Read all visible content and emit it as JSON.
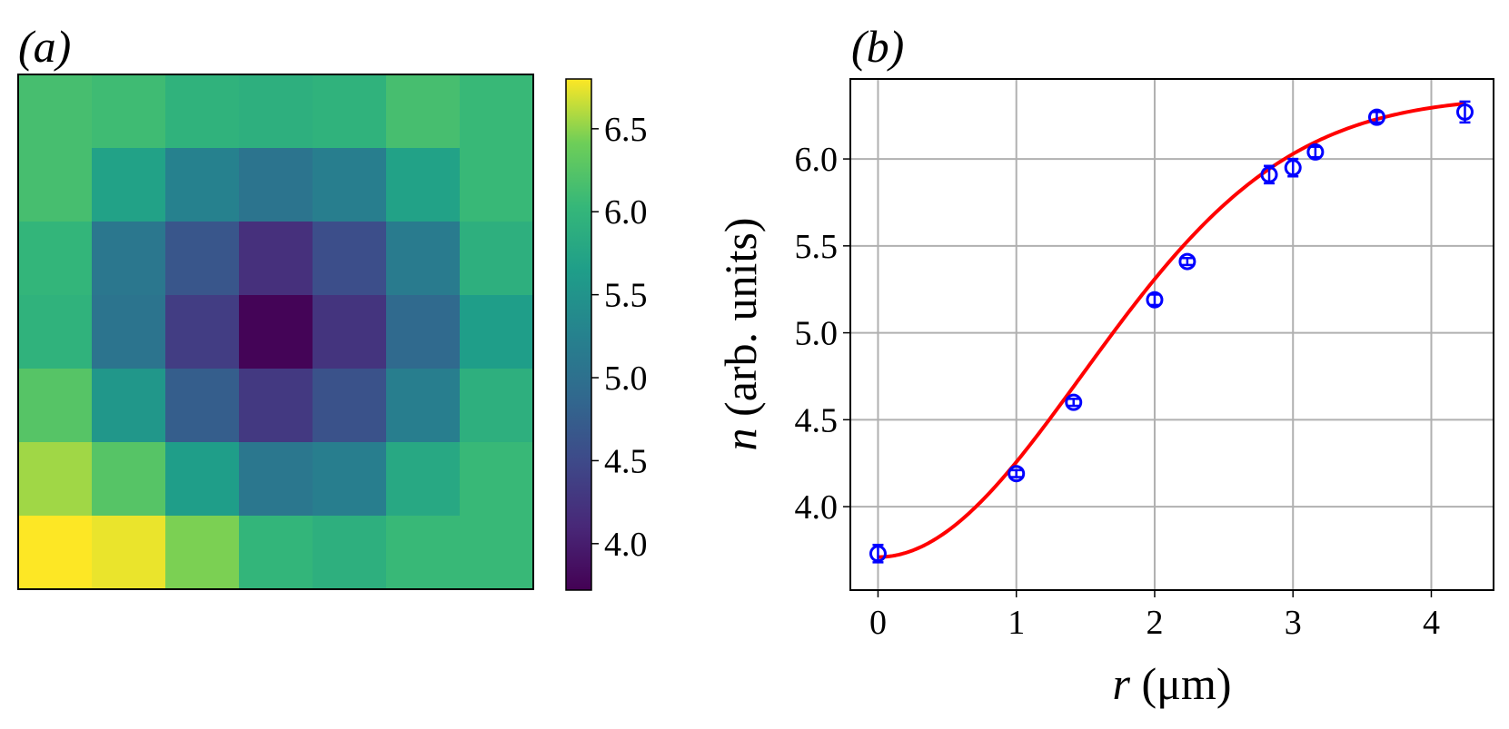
{
  "chart_data": [
    {
      "type": "heatmap",
      "panel_label": "(a)",
      "colormap": "viridis",
      "rows": [
        [
          6.15,
          6.1,
          5.95,
          5.9,
          5.95,
          6.15,
          6.05
        ],
        [
          6.15,
          5.7,
          5.25,
          5.05,
          5.2,
          5.7,
          6.05
        ],
        [
          6.0,
          5.1,
          4.65,
          4.2,
          4.55,
          5.15,
          5.9
        ],
        [
          5.95,
          5.05,
          4.35,
          3.75,
          4.25,
          4.9,
          5.65
        ],
        [
          6.25,
          5.55,
          4.75,
          4.3,
          4.6,
          5.2,
          5.9
        ],
        [
          6.55,
          6.25,
          5.65,
          5.1,
          5.2,
          5.8,
          6.05
        ],
        [
          6.8,
          6.75,
          6.45,
          6.0,
          5.9,
          6.05,
          6.05
        ]
      ],
      "colorbar": {
        "range": [
          3.72,
          6.8
        ],
        "ticks": [
          "4.0",
          "4.5",
          "5.0",
          "5.5",
          "6.0",
          "6.5"
        ],
        "tick_values": [
          4.0,
          4.5,
          5.0,
          5.5,
          6.0,
          6.5
        ]
      }
    },
    {
      "type": "scatter",
      "panel_label": "(b)",
      "xlabel_var": "r",
      "xlabel_unit": " (μm)",
      "ylabel_var": "n",
      "ylabel_unit": " (arb. units)",
      "xlim": [
        -0.2,
        4.45
      ],
      "ylim": [
        3.52,
        6.46
      ],
      "xticks": [
        0,
        1,
        2,
        3,
        4
      ],
      "yticks": [
        4.0,
        4.5,
        5.0,
        5.5,
        6.0
      ],
      "ytick_labels": [
        "4.0",
        "4.5",
        "5.0",
        "5.5",
        "6.0"
      ],
      "grid": true,
      "series": [
        {
          "name": "data",
          "marker": "open-circle",
          "color": "#0000ff",
          "x": [
            0,
            1,
            1.414,
            2,
            2.236,
            2.828,
            3,
            3.162,
            3.606,
            4.243
          ],
          "y": [
            3.73,
            4.19,
            4.6,
            5.19,
            5.41,
            5.91,
            5.95,
            6.04,
            6.24,
            6.27
          ],
          "yerr": [
            0.05,
            0.02,
            0.02,
            0.03,
            0.02,
            0.05,
            0.05,
            0.03,
            0.03,
            0.06
          ]
        },
        {
          "name": "fit",
          "type": "line",
          "color": "#ff0000",
          "model": {
            "a": 3.71,
            "b": 2.65,
            "r0": 2.08,
            "x_max": 4.243
          }
        }
      ]
    }
  ]
}
